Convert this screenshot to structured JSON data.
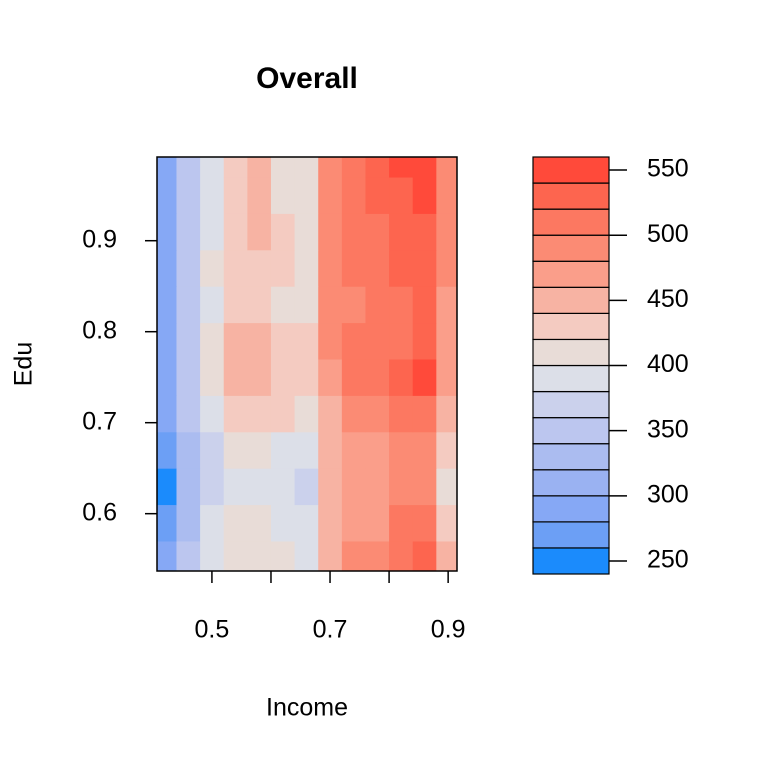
{
  "chart_data": {
    "type": "filled-contour",
    "title": "Overall",
    "x_label": "Income",
    "y_label": "Edu",
    "x": [
      0.42,
      0.46,
      0.5,
      0.54,
      0.58,
      0.62,
      0.66,
      0.7,
      0.74,
      0.78,
      0.82,
      0.86,
      0.9
    ],
    "y": [
      0.55,
      0.59,
      0.63,
      0.67,
      0.71,
      0.75,
      0.79,
      0.83,
      0.87,
      0.91,
      0.95,
      0.99
    ],
    "z": [
      [
        290,
        340,
        385,
        410,
        415,
        400,
        395,
        450,
        480,
        490,
        510,
        520,
        450
      ],
      [
        260,
        330,
        380,
        400,
        400,
        390,
        385,
        455,
        470,
        470,
        500,
        510,
        430
      ],
      [
        245,
        320,
        370,
        395,
        395,
        380,
        370,
        450,
        460,
        460,
        480,
        490,
        410
      ],
      [
        260,
        330,
        375,
        400,
        400,
        395,
        385,
        450,
        470,
        470,
        480,
        490,
        420
      ],
      [
        280,
        345,
        390,
        420,
        430,
        420,
        410,
        455,
        490,
        490,
        500,
        510,
        450
      ],
      [
        290,
        355,
        400,
        440,
        450,
        430,
        420,
        470,
        500,
        500,
        520,
        540,
        470
      ],
      [
        290,
        355,
        400,
        440,
        445,
        430,
        420,
        480,
        500,
        500,
        515,
        535,
        470
      ],
      [
        290,
        355,
        395,
        425,
        430,
        415,
        405,
        480,
        490,
        500,
        505,
        520,
        470
      ],
      [
        290,
        355,
        400,
        430,
        435,
        420,
        410,
        485,
        505,
        510,
        520,
        530,
        480
      ],
      [
        285,
        350,
        395,
        430,
        440,
        420,
        410,
        485,
        500,
        505,
        520,
        530,
        480
      ],
      [
        285,
        345,
        395,
        430,
        440,
        415,
        405,
        490,
        510,
        520,
        535,
        540,
        490
      ],
      [
        285,
        345,
        395,
        430,
        440,
        415,
        405,
        490,
        510,
        520,
        540,
        545,
        490
      ]
    ],
    "xlim": [
      0.407,
      0.915
    ],
    "ylim": [
      0.537,
      0.992
    ],
    "xticks": [
      0.5,
      0.7,
      0.9
    ],
    "xminorticks": [
      0.6,
      0.8
    ],
    "yticks": [
      0.6,
      0.7,
      0.8,
      0.9
    ],
    "levels": [
      240,
      260,
      280,
      300,
      320,
      340,
      360,
      380,
      400,
      420,
      440,
      460,
      480,
      500,
      520,
      540,
      560
    ],
    "colors": [
      "#1b8bfc",
      "#6c9ff5",
      "#86a8f5",
      "#9ab2f2",
      "#abbcf0",
      "#bcc6ef",
      "#cbd1ec",
      "#dcdfe8",
      "#e8dcd7",
      "#f4cbc1",
      "#f7b3a3",
      "#fa9e8a",
      "#fb8b74",
      "#fc7861",
      "#fd654f",
      "#ff4a3a"
    ],
    "colorbar_ticks": [
      250,
      300,
      350,
      400,
      450,
      500,
      550
    ]
  }
}
